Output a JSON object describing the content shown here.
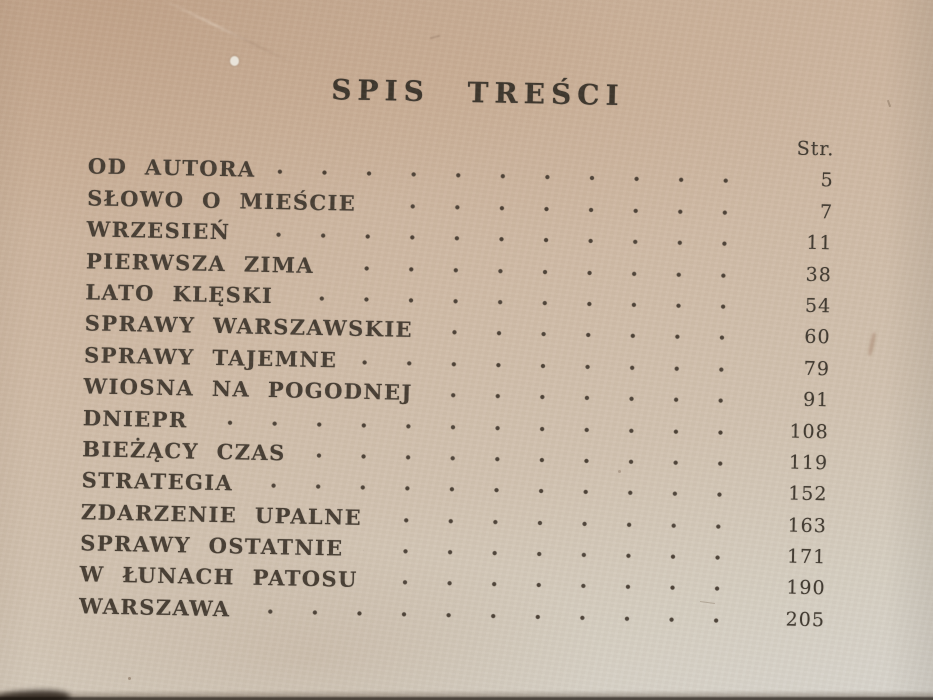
{
  "document": {
    "title": "SPIS TREŚCI",
    "page_column_header": "Str.",
    "entries": [
      {
        "label": "OD AUTORA",
        "page": "5"
      },
      {
        "label": "SŁOWO O MIEŚCIE",
        "page": "7"
      },
      {
        "label": "WRZESIEŃ",
        "page": "11"
      },
      {
        "label": "PIERWSZA ZIMA",
        "page": "38"
      },
      {
        "label": "LATO KLĘSKI",
        "page": "54"
      },
      {
        "label": "SPRAWY WARSZAWSKIE",
        "page": "60"
      },
      {
        "label": "SPRAWY TAJEMNE",
        "page": "79"
      },
      {
        "label": "WIOSNA NA POGODNEJ",
        "page": "91"
      },
      {
        "label": "DNIEPR",
        "page": "108"
      },
      {
        "label": "BIEŻĄCY CZAS",
        "page": "119"
      },
      {
        "label": "STRATEGIA",
        "page": "152"
      },
      {
        "label": "ZDARZENIE UPALNE",
        "page": "163"
      },
      {
        "label": "SPRAWY OSTATNIE",
        "page": "171"
      },
      {
        "label": "W ŁUNACH PATOSU",
        "page": "190"
      },
      {
        "label": "WARSZAWA",
        "page": "205"
      }
    ],
    "colors": {
      "paper_warm": "#c7ad96",
      "paper_cool": "#d8d5ce",
      "ink": "#3f372e"
    }
  }
}
